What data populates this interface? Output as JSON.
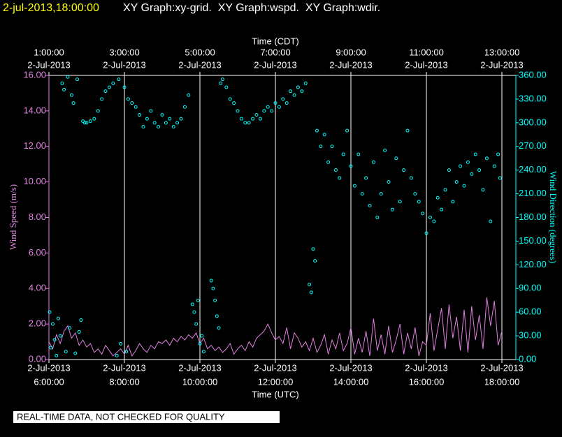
{
  "chart_data": {
    "type": "line",
    "timestamp": "2-jul-2013,18:00:00",
    "title": "XY Graph:xy-grid.  XY Graph:wspd.  XY Graph:wdir.",
    "x_label": "Time (UTC)",
    "x2_label": "Time (CDT)",
    "y_label": "Wind Speed (m/s)",
    "y2_label": "Wind Direction (degrees)",
    "note": "REAL-TIME DATA, NOT CHECKED FOR QUALITY",
    "grid": true,
    "xlim": [
      6,
      18.37
    ],
    "xticks": [
      {
        "value": 6,
        "label": "6:00:00"
      },
      {
        "value": 8,
        "label": "8:00:00"
      },
      {
        "value": 10,
        "label": "10:00:00"
      },
      {
        "value": 12,
        "label": "12:00:00"
      },
      {
        "value": 14,
        "label": "14:00:00"
      },
      {
        "value": 16,
        "label": "16:00:00"
      },
      {
        "value": 18,
        "label": "18:00:00"
      }
    ],
    "xtick_dates": [
      "2-Jul-2013",
      "2-Jul-2013",
      "2-Jul-2013",
      "2-Jul-2013",
      "2-Jul-2013",
      "2-Jul-2013",
      "2-Jul-2013"
    ],
    "x2ticks": [
      {
        "value": 6,
        "label": "1:00:00"
      },
      {
        "value": 8,
        "label": "3:00:00"
      },
      {
        "value": 10,
        "label": "5:00:00"
      },
      {
        "value": 12,
        "label": "7:00:00"
      },
      {
        "value": 14,
        "label": "9:00:00"
      },
      {
        "value": 16,
        "label": "11:00:00"
      },
      {
        "value": 18,
        "label": "13:00:00"
      }
    ],
    "x2tick_dates": [
      "2-Jul-2013",
      "2-Jul-2013",
      "2-Jul-2013",
      "2-Jul-2013",
      "2-Jul-2013",
      "2-Jul-2013",
      "2-Jul-2013"
    ],
    "ylim": [
      0,
      16
    ],
    "yticks": [
      {
        "value": 0,
        "label": "0.00"
      },
      {
        "value": 2,
        "label": "2.00"
      },
      {
        "value": 4,
        "label": "4.00"
      },
      {
        "value": 6,
        "label": "6.00"
      },
      {
        "value": 8,
        "label": "8.00"
      },
      {
        "value": 10,
        "label": "10.00"
      },
      {
        "value": 12,
        "label": "12.00"
      },
      {
        "value": 14,
        "label": "14.00"
      },
      {
        "value": 16,
        "label": "16.00"
      }
    ],
    "y2lim": [
      0,
      360
    ],
    "y2ticks": [
      {
        "value": 0,
        "label": "0.00"
      },
      {
        "value": 30,
        "label": "30.00"
      },
      {
        "value": 60,
        "label": "60.00"
      },
      {
        "value": 90,
        "label": "90.00"
      },
      {
        "value": 120,
        "label": "120.00"
      },
      {
        "value": 150,
        "label": "150.00"
      },
      {
        "value": 180,
        "label": "180.00"
      },
      {
        "value": 210,
        "label": "210.00"
      },
      {
        "value": 240,
        "label": "240.00"
      },
      {
        "value": 270,
        "label": "270.00"
      },
      {
        "value": 300,
        "label": "300.00"
      },
      {
        "value": 330,
        "label": "330.00"
      },
      {
        "value": 360,
        "label": "360.00"
      }
    ],
    "y_color": "#e080e0",
    "y2_color": "#00ffff",
    "series": [
      {
        "name": "wspd",
        "type": "line",
        "color": "#e080e0",
        "x": [
          6.0,
          6.1,
          6.2,
          6.3,
          6.4,
          6.5,
          6.6,
          6.7,
          6.8,
          6.9,
          7.0,
          7.1,
          7.2,
          7.3,
          7.4,
          7.5,
          7.6,
          7.7,
          7.8,
          7.9,
          8.0,
          8.1,
          8.2,
          8.3,
          8.4,
          8.5,
          8.6,
          8.7,
          8.8,
          8.9,
          9.0,
          9.1,
          9.2,
          9.3,
          9.4,
          9.5,
          9.6,
          9.7,
          9.8,
          9.9,
          10.0,
          10.1,
          10.2,
          10.3,
          10.4,
          10.5,
          10.6,
          10.7,
          10.8,
          10.9,
          11.0,
          11.1,
          11.2,
          11.3,
          11.4,
          11.5,
          11.6,
          11.7,
          11.8,
          11.9,
          12.0,
          12.1,
          12.2,
          12.3,
          12.4,
          12.5,
          12.6,
          12.7,
          12.8,
          12.9,
          13.0,
          13.1,
          13.2,
          13.3,
          13.4,
          13.5,
          13.6,
          13.7,
          13.8,
          13.9,
          14.0,
          14.1,
          14.2,
          14.3,
          14.4,
          14.5,
          14.6,
          14.7,
          14.8,
          14.9,
          15.0,
          15.1,
          15.2,
          15.3,
          15.4,
          15.5,
          15.6,
          15.7,
          15.8,
          15.9,
          16.0,
          16.1,
          16.2,
          16.3,
          16.4,
          16.5,
          16.6,
          16.7,
          16.8,
          16.9,
          17.0,
          17.1,
          17.2,
          17.3,
          17.4,
          17.5,
          17.6,
          17.7,
          17.8,
          17.9,
          18.0
        ],
        "values": [
          1.0,
          0.6,
          1.4,
          0.9,
          1.6,
          1.9,
          1.2,
          1.5,
          0.8,
          1.1,
          0.7,
          0.9,
          0.4,
          0.6,
          0.3,
          0.8,
          0.5,
          0.2,
          0.4,
          0.6,
          0.3,
          0.8,
          0.2,
          0.5,
          0.9,
          0.6,
          0.4,
          0.8,
          0.6,
          1.0,
          0.9,
          1.1,
          0.8,
          1.2,
          1.0,
          1.3,
          1.1,
          1.4,
          1.2,
          1.5,
          0.9,
          1.2,
          0.6,
          0.8,
          0.5,
          0.7,
          0.4,
          0.6,
          0.9,
          0.3,
          0.6,
          0.8,
          0.5,
          1.0,
          0.7,
          1.2,
          1.4,
          1.6,
          2.0,
          1.5,
          1.1,
          1.3,
          0.9,
          1.8,
          0.6,
          1.5,
          1.2,
          0.7,
          1.0,
          0.5,
          1.2,
          0.4,
          0.8,
          1.4,
          0.3,
          1.1,
          0.6,
          1.5,
          0.5,
          0.9,
          1.8,
          0.3,
          1.2,
          0.4,
          1.6,
          0.2,
          2.3,
          0.5,
          1.4,
          0.3,
          1.9,
          0.4,
          1.1,
          2.0,
          0.3,
          1.5,
          0.6,
          1.8,
          0.2,
          1.0,
          0.8,
          2.6,
          0.5,
          1.7,
          2.9,
          0.6,
          3.1,
          1.2,
          2.4,
          0.5,
          2.8,
          0.4,
          3.0,
          1.1,
          2.5,
          0.6,
          3.5,
          1.9,
          3.3,
          0.8,
          1.6
        ]
      },
      {
        "name": "wdir",
        "type": "scatter",
        "axis": "y2",
        "color": "#00ffff",
        "x": [
          6.02,
          6.05,
          6.1,
          6.15,
          6.2,
          6.25,
          6.3,
          6.35,
          6.4,
          6.45,
          6.5,
          6.55,
          6.6,
          6.65,
          6.7,
          6.75,
          6.8,
          6.85,
          6.9,
          6.95,
          7.0,
          7.1,
          7.2,
          7.3,
          7.4,
          7.5,
          7.6,
          7.7,
          7.8,
          7.85,
          7.9,
          8.0,
          8.05,
          8.1,
          8.2,
          8.3,
          8.4,
          8.5,
          8.6,
          8.7,
          8.8,
          8.9,
          9.0,
          9.1,
          9.2,
          9.3,
          9.4,
          9.5,
          9.6,
          9.7,
          9.8,
          9.85,
          9.9,
          9.95,
          10.0,
          10.05,
          10.1,
          10.3,
          10.35,
          10.4,
          10.45,
          10.5,
          10.55,
          10.6,
          10.7,
          10.8,
          10.9,
          11.0,
          11.1,
          11.2,
          11.3,
          11.4,
          11.5,
          11.6,
          11.7,
          11.8,
          11.9,
          12.0,
          12.1,
          12.2,
          12.3,
          12.4,
          12.5,
          12.6,
          12.7,
          12.8,
          12.9,
          12.95,
          13.0,
          13.05,
          13.1,
          13.2,
          13.3,
          13.4,
          13.5,
          13.6,
          13.7,
          13.8,
          13.9,
          14.0,
          14.1,
          14.2,
          14.3,
          14.4,
          14.5,
          14.6,
          14.7,
          14.8,
          14.9,
          15.0,
          15.1,
          15.2,
          15.3,
          15.4,
          15.5,
          15.6,
          15.7,
          15.8,
          15.9,
          16.0,
          16.1,
          16.2,
          16.3,
          16.4,
          16.5,
          16.6,
          16.7,
          16.8,
          16.9,
          17.0,
          17.1,
          17.2,
          17.3,
          17.4,
          17.5,
          17.6,
          17.7,
          17.8,
          17.9,
          17.95
        ],
        "values": [
          60,
          15,
          45,
          25,
          5,
          52,
          30,
          350,
          342,
          10,
          358,
          40,
          335,
          325,
          8,
          355,
          35,
          50,
          302,
          300,
          300,
          302,
          305,
          315,
          330,
          340,
          345,
          350,
          5,
          355,
          20,
          345,
          10,
          330,
          325,
          320,
          310,
          295,
          305,
          315,
          300,
          295,
          310,
          300,
          305,
          295,
          300,
          305,
          320,
          335,
          70,
          60,
          45,
          75,
          20,
          30,
          10,
          100,
          90,
          75,
          55,
          40,
          350,
          355,
          345,
          330,
          325,
          315,
          305,
          300,
          300,
          305,
          310,
          305,
          315,
          320,
          315,
          325,
          320,
          330,
          325,
          340,
          335,
          345,
          340,
          350,
          95,
          85,
          140,
          125,
          290,
          270,
          285,
          250,
          270,
          240,
          230,
          260,
          290,
          245,
          220,
          260,
          210,
          230,
          195,
          250,
          180,
          210,
          265,
          225,
          190,
          255,
          200,
          240,
          290,
          230,
          210,
          200,
          185,
          160,
          180,
          175,
          205,
          190,
          215,
          240,
          200,
          225,
          245,
          220,
          250,
          235,
          260,
          240,
          215,
          255,
          175,
          245,
          260,
          230
        ]
      }
    ]
  }
}
